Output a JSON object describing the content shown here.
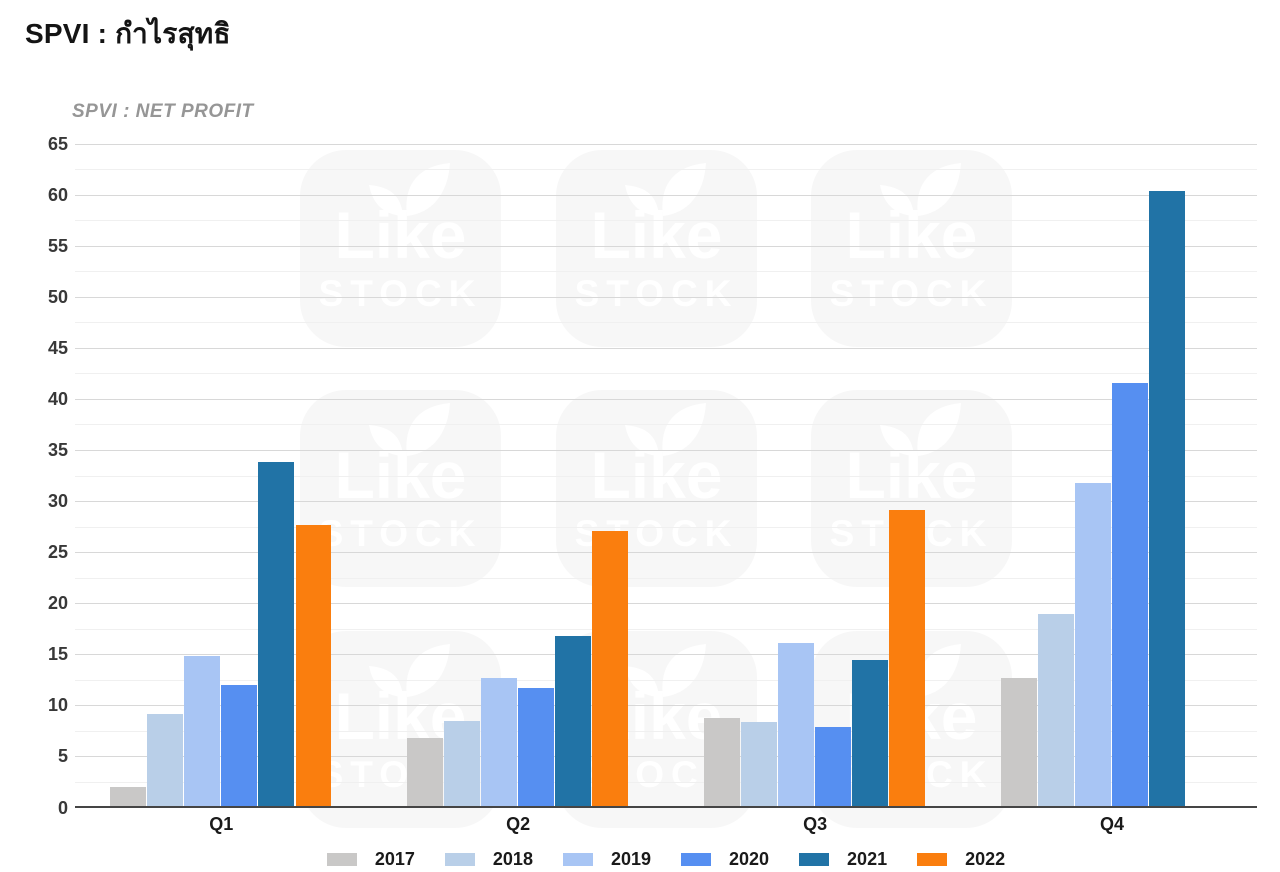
{
  "header": {
    "title": "SPVI : กำไรสุทธิ"
  },
  "chart": {
    "subtitle": "SPVI : NET PROFIT"
  },
  "watermark": {
    "line1": "Like",
    "line2": "STOCK",
    "icon": "leaf-icon"
  },
  "chart_data": {
    "type": "bar",
    "title": "SPVI : กำไรสุทธิ",
    "subtitle": "SPVI : NET PROFIT",
    "categories": [
      "Q1",
      "Q2",
      "Q3",
      "Q4"
    ],
    "series": [
      {
        "name": "2017",
        "color": "#c9c8c7",
        "values": [
          2.0,
          6.8,
          8.8,
          12.7
        ]
      },
      {
        "name": "2018",
        "color": "#b9cfe8",
        "values": [
          9.2,
          8.5,
          8.4,
          18.9
        ]
      },
      {
        "name": "2019",
        "color": "#a8c5f4",
        "values": [
          14.8,
          12.7,
          16.1,
          31.8
        ]
      },
      {
        "name": "2020",
        "color": "#568ff1",
        "values": [
          12.0,
          11.7,
          7.9,
          41.6
        ]
      },
      {
        "name": "2021",
        "color": "#2173a6",
        "values": [
          33.8,
          16.8,
          14.4,
          60.4
        ]
      },
      {
        "name": "2022",
        "color": "#fa7e0e",
        "values": [
          27.7,
          27.1,
          29.1,
          null
        ]
      }
    ],
    "ylabel": "",
    "xlabel": "",
    "ylim": [
      0,
      65
    ],
    "ytick_step": 5,
    "yminor_step": 2.5,
    "grid": "horizontal-major-and-minor",
    "legend_position": "bottom",
    "bar_gap_note": "grouped bars, no 2022 bar in Q4"
  }
}
